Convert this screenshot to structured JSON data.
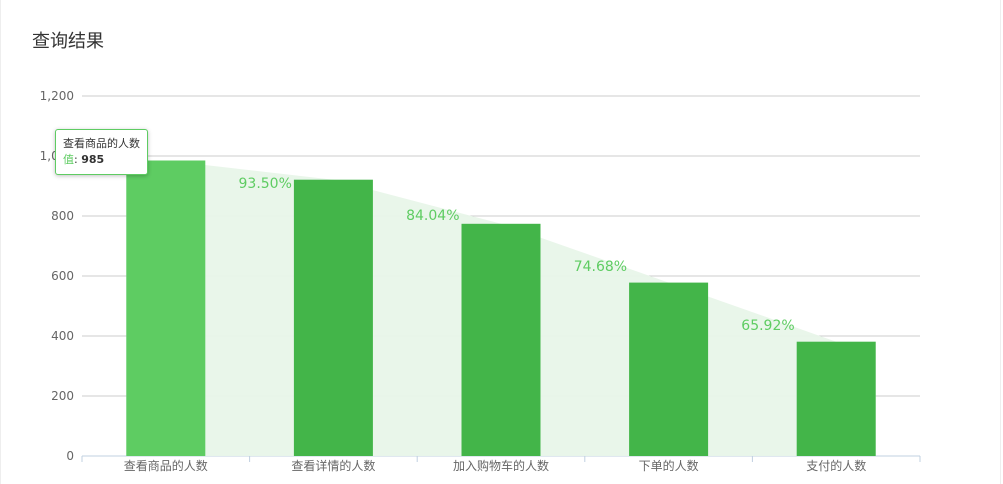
{
  "page": {
    "title": "查询结果"
  },
  "tooltip": {
    "category": "查看商品的人数",
    "value_key": "值",
    "value": "985"
  },
  "chart_data": {
    "type": "bar",
    "categories": [
      "查看商品的人数",
      "查看详情的人数",
      "加入购物车的人数",
      "下单的人数",
      "支付的人数"
    ],
    "values": [
      985,
      921,
      774,
      578,
      381
    ],
    "rates": [
      "",
      "93.50%",
      "84.04%",
      "74.68%",
      "65.92%"
    ],
    "ylim": [
      0,
      1200
    ],
    "yticks": [
      0,
      200,
      400,
      600,
      800,
      1000,
      1200
    ],
    "ytick_labels": [
      "0",
      "200",
      "400",
      "600",
      "800",
      "1,000",
      "1,200"
    ],
    "highlighted_index": 0,
    "grid": true,
    "colors": {
      "bar": "#43b549",
      "bar_highlight": "#5ecc62",
      "area": "#e8f6e9",
      "grid": "#cccccc"
    }
  }
}
